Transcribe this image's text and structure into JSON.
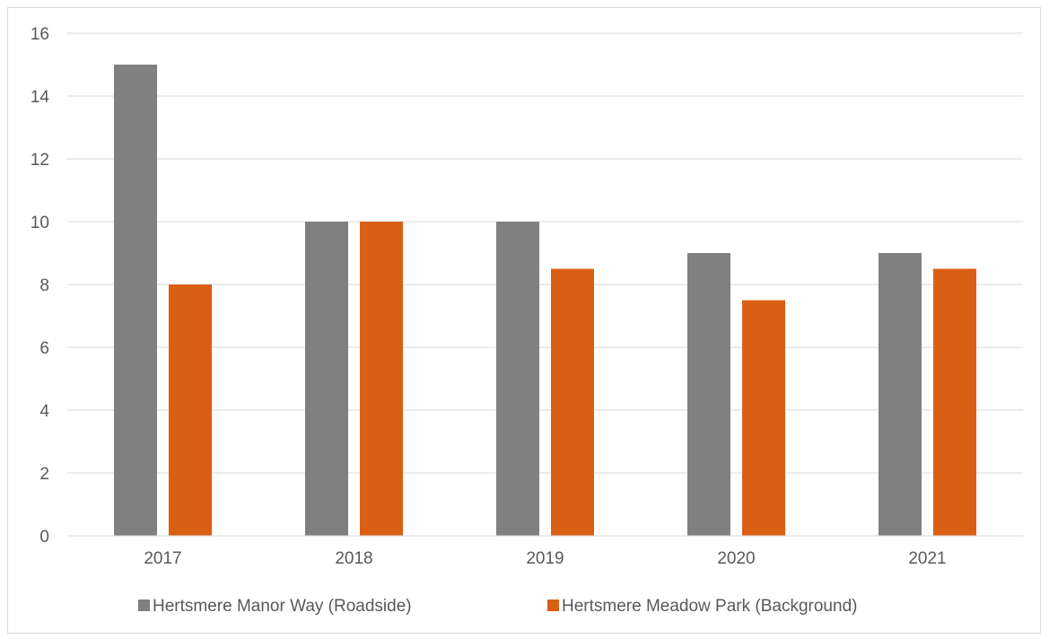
{
  "chart_data": {
    "type": "bar",
    "title": "",
    "xlabel": "",
    "ylabel": "",
    "categories": [
      "2017",
      "2018",
      "2019",
      "2020",
      "2021"
    ],
    "series": [
      {
        "name": "Hertsmere Manor Way (Roadside)",
        "color": "#808080",
        "values": [
          15,
          10,
          10,
          9,
          9
        ]
      },
      {
        "name": "Hertsmere Meadow Park (Background)",
        "color": "#d95f14",
        "values": [
          8,
          10,
          8.5,
          7.5,
          8.5
        ]
      }
    ],
    "ylim": [
      0,
      16
    ],
    "yticks": [
      "0",
      "2",
      "4",
      "6",
      "8",
      "10",
      "12",
      "14",
      "16"
    ],
    "grid": true,
    "gridColor": "#d9d9d9",
    "legend": "bottom"
  }
}
